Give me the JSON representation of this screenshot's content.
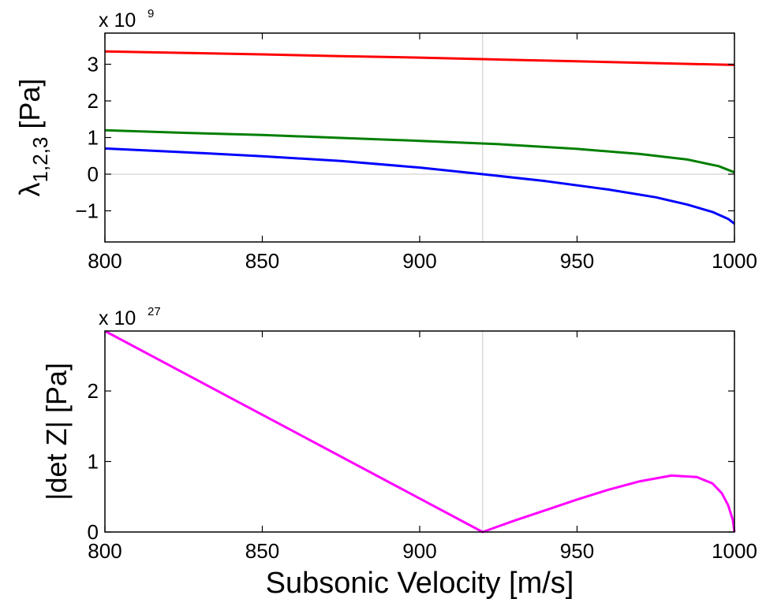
{
  "chart_data": [
    {
      "type": "line",
      "xlabel": "",
      "ylabel_main": "λ",
      "ylabel_sub": "1,2,3",
      "ylabel_unit": " [Pa]",
      "exponent_prefix": "x 10",
      "exponent_power": "9",
      "xlim": [
        800,
        1000
      ],
      "ylim": [
        -1.85,
        3.85
      ],
      "xticks": [
        800,
        850,
        900,
        950,
        1000
      ],
      "xtick_labels": [
        "800",
        "850",
        "900",
        "950",
        "1000"
      ],
      "yticks": [
        -1,
        0,
        1,
        2,
        3
      ],
      "ytick_labels": [
        "−1",
        "0",
        "1",
        "2",
        "3"
      ],
      "vline_x": 920,
      "hline_y": 0,
      "series": [
        {
          "color": "#ff0000",
          "x": [
            800,
            825,
            850,
            875,
            900,
            925,
            950,
            975,
            1000
          ],
          "y": [
            3.35,
            3.31,
            3.27,
            3.22,
            3.18,
            3.13,
            3.08,
            3.03,
            2.98
          ]
        },
        {
          "color": "#007f00",
          "x": [
            800,
            825,
            850,
            875,
            900,
            925,
            950,
            970,
            985,
            995,
            1000
          ],
          "y": [
            1.2,
            1.13,
            1.07,
            0.99,
            0.91,
            0.82,
            0.69,
            0.55,
            0.4,
            0.22,
            0.05
          ]
        },
        {
          "color": "#0000ff",
          "x": [
            800,
            825,
            850,
            875,
            900,
            920,
            940,
            960,
            975,
            985,
            993,
            998,
            1000
          ],
          "y": [
            0.7,
            0.6,
            0.49,
            0.36,
            0.18,
            0.0,
            -0.19,
            -0.42,
            -0.63,
            -0.83,
            -1.03,
            -1.22,
            -1.35
          ]
        }
      ]
    },
    {
      "type": "line",
      "xlabel": "Subsonic Velocity [m/s]",
      "ylabel": "|det Z| [Pa]",
      "exponent_prefix": "x 10",
      "exponent_power": "27",
      "xlim": [
        800,
        1000
      ],
      "ylim": [
        0,
        2.85
      ],
      "xticks": [
        800,
        850,
        900,
        950,
        1000
      ],
      "xtick_labels": [
        "800",
        "850",
        "900",
        "950",
        "1000"
      ],
      "yticks": [
        0,
        1,
        2
      ],
      "ytick_labels": [
        "0",
        "1",
        "2"
      ],
      "vline_x": 920,
      "series": [
        {
          "color": "#ff00ff",
          "x": [
            800,
            920,
            930,
            940,
            950,
            960,
            970,
            980,
            988,
            993,
            996,
            998,
            999.5,
            1000
          ],
          "y": [
            2.85,
            0.0,
            0.16,
            0.31,
            0.46,
            0.6,
            0.72,
            0.8,
            0.78,
            0.69,
            0.55,
            0.38,
            0.17,
            0.0
          ]
        }
      ]
    }
  ]
}
